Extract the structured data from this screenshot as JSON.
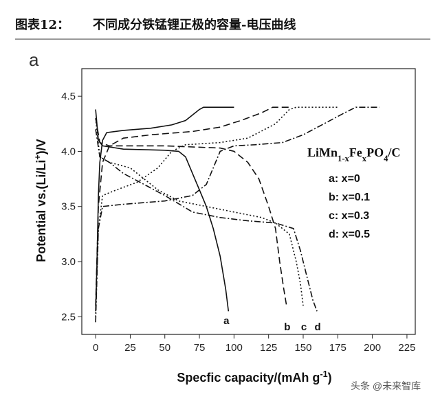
{
  "header": {
    "label": "图表12：",
    "title": "不同成分铁锰锂正极的容量-电压曲线"
  },
  "watermark": "头条 @未来智库",
  "chart_data": {
    "type": "line",
    "panel_label": "a",
    "x_label": [
      {
        "text": "Specfic capacity/(mAh g"
      },
      {
        "text": "-1",
        "sup": true
      },
      {
        "text": ")"
      }
    ],
    "y_label": [
      {
        "text": "Potential vs.(Li/Li"
      },
      {
        "text": "+",
        "sup": true
      },
      {
        "text": ")/V"
      }
    ],
    "legend_title": [
      {
        "text": "LiMn"
      },
      {
        "text": "1-x",
        "sub": true
      },
      {
        "text": "Fe"
      },
      {
        "text": "x",
        "sub": true
      },
      {
        "text": "PO"
      },
      {
        "text": "4",
        "sub": true
      },
      {
        "text": "/C"
      }
    ],
    "xlim": [
      -10,
      231
    ],
    "ylim": [
      2.34,
      4.75
    ],
    "xticks": [
      0,
      25,
      50,
      75,
      100,
      125,
      150,
      175,
      200,
      225
    ],
    "yticks": [
      2.5,
      {
        "value": 3,
        "label": "3.0"
      },
      3.5,
      {
        "value": 4,
        "label": "4.0"
      },
      4.5
    ],
    "series": [
      {
        "name": "a: x=0",
        "label": "a",
        "color": "#111111",
        "dash": "solid",
        "charge": {
          "x": [
            0,
            1,
            2,
            3,
            5,
            8,
            20,
            40,
            55,
            65,
            75,
            78,
            100
          ],
          "y": [
            2.55,
            3.0,
            3.6,
            3.9,
            4.1,
            4.17,
            4.19,
            4.21,
            4.24,
            4.28,
            4.38,
            4.4,
            4.4
          ]
        },
        "discharge": {
          "x": [
            0,
            2,
            5,
            20,
            50,
            60,
            65,
            70,
            75,
            80,
            85,
            90,
            94,
            96
          ],
          "y": [
            4.38,
            4.1,
            4.05,
            4.02,
            4.01,
            4.0,
            3.95,
            3.8,
            3.65,
            3.5,
            3.3,
            3.05,
            2.75,
            2.55
          ]
        }
      },
      {
        "name": "b: x=0.1",
        "label": "b",
        "color": "#111111",
        "dash": "dashed",
        "charge": {
          "x": [
            0,
            2,
            5,
            10,
            20,
            40,
            70,
            90,
            105,
            120,
            128,
            140
          ],
          "y": [
            2.6,
            3.5,
            3.9,
            4.05,
            4.12,
            4.15,
            4.18,
            4.22,
            4.28,
            4.35,
            4.4,
            4.4
          ]
        },
        "discharge": {
          "x": [
            0,
            3,
            10,
            50,
            90,
            100,
            110,
            118,
            125,
            130,
            133,
            136,
            138
          ],
          "y": [
            4.3,
            4.08,
            4.05,
            4.05,
            4.03,
            4.0,
            3.9,
            3.75,
            3.5,
            3.3,
            3.0,
            2.75,
            2.6
          ]
        }
      },
      {
        "name": "c: x=0.3",
        "label": "c",
        "color": "#111111",
        "dash": "dotted",
        "charge": {
          "x": [
            0,
            2,
            5,
            15,
            30,
            45,
            55,
            65,
            90,
            110,
            130,
            140,
            145,
            175
          ],
          "y": [
            2.5,
            3.3,
            3.6,
            3.65,
            3.72,
            3.85,
            4.0,
            4.06,
            4.08,
            4.12,
            4.25,
            4.38,
            4.4,
            4.4
          ]
        },
        "discharge": {
          "x": [
            0,
            3,
            10,
            25,
            35,
            45,
            60,
            80,
            100,
            120,
            130,
            140,
            145,
            148,
            150
          ],
          "y": [
            4.3,
            3.95,
            3.9,
            3.85,
            3.75,
            3.65,
            3.55,
            3.5,
            3.45,
            3.4,
            3.35,
            3.25,
            3.0,
            2.8,
            2.6
          ]
        }
      },
      {
        "name": "d: x=0.5",
        "label": "d",
        "color": "#111111",
        "dash": "dashdot",
        "charge": {
          "x": [
            0,
            2,
            5,
            20,
            50,
            70,
            80,
            85,
            90,
            100,
            115,
            135,
            150,
            165,
            180,
            188,
            205
          ],
          "y": [
            2.45,
            3.3,
            3.5,
            3.52,
            3.55,
            3.6,
            3.7,
            3.85,
            4.0,
            4.05,
            4.06,
            4.08,
            4.15,
            4.25,
            4.35,
            4.4,
            4.4
          ]
        },
        "discharge": {
          "x": [
            0,
            3,
            10,
            20,
            35,
            50,
            70,
            90,
            110,
            130,
            143,
            148,
            153,
            157,
            160
          ],
          "y": [
            4.2,
            3.95,
            3.9,
            3.8,
            3.7,
            3.6,
            3.45,
            3.4,
            3.37,
            3.35,
            3.3,
            3.1,
            2.85,
            2.65,
            2.55
          ]
        }
      }
    ]
  }
}
